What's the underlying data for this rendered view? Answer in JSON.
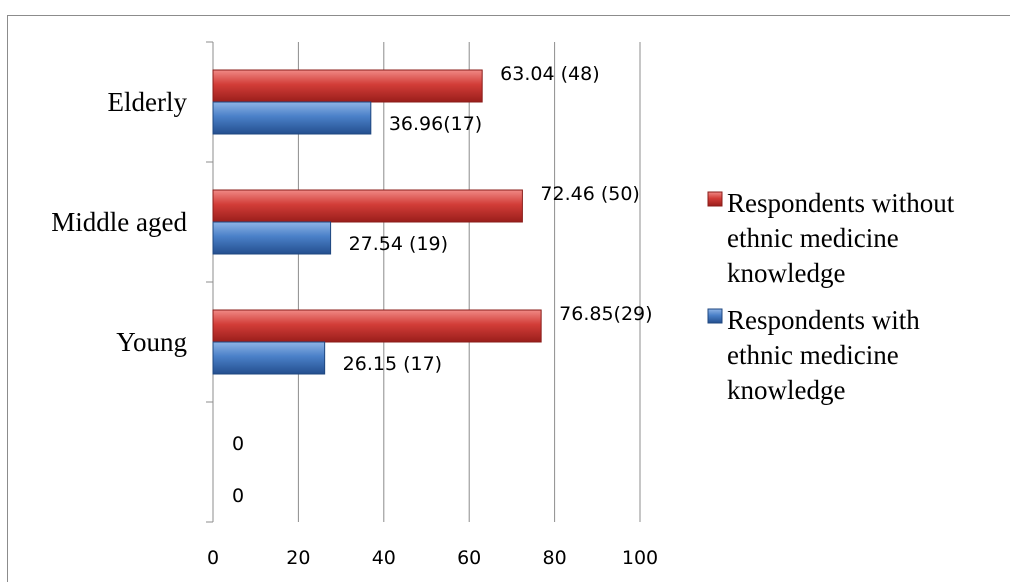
{
  "chart_data": {
    "type": "bar",
    "orientation": "horizontal",
    "categories": [
      "",
      "Young",
      "Middle aged",
      "Elderly"
    ],
    "series": [
      {
        "name": "Respondents without ethnic medicine knowledge",
        "color": "#c0302c",
        "values": [
          0,
          76.85,
          72.46,
          63.04
        ],
        "labels": [
          "0",
          "76.85(29)",
          "72.46 (50)",
          "63.04 (48)"
        ]
      },
      {
        "name": "Respondents with ethnic medicine knowledge",
        "color": "#3f74be",
        "values": [
          0,
          26.15,
          27.54,
          36.96
        ],
        "labels": [
          "0",
          "26.15 (17)",
          "27.54 (19)",
          "36.96(17)"
        ]
      }
    ],
    "xlim": [
      0,
      100
    ],
    "xticks": [
      0,
      20,
      40,
      60,
      80,
      100
    ],
    "grid": true,
    "legend": {
      "position": "right",
      "entries": [
        {
          "lines": [
            "Respondents without",
            "ethnic medicine",
            "knowledge"
          ]
        },
        {
          "lines": [
            "Respondents with",
            "ethnic medicine",
            "knowledge"
          ]
        }
      ]
    }
  }
}
